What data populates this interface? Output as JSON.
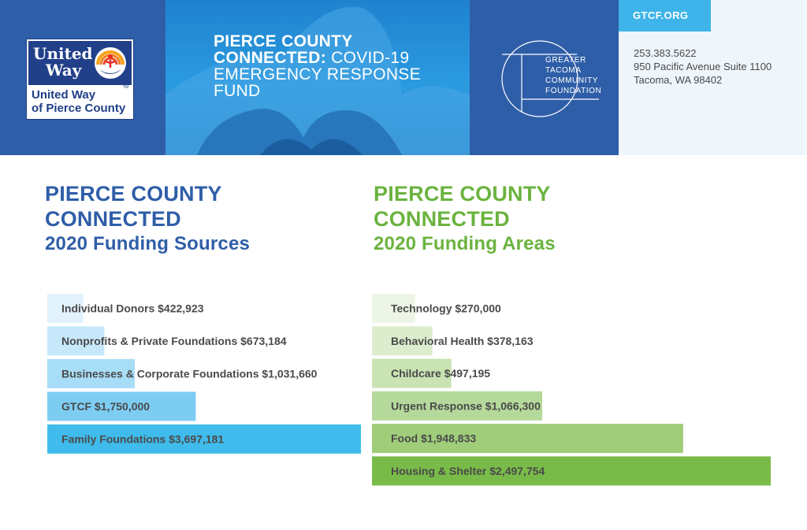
{
  "header": {
    "logo_lines": [
      "United",
      "Way"
    ],
    "logo_subtitle_lines": [
      "United Way",
      "of Pierce County"
    ],
    "logo_tm": "TM",
    "title_bold_1": "PIERCE COUNTY",
    "title_bold_2": "CONNECTED:",
    "title_normal_2": " COVID-19",
    "title_line_3": "EMERGENCY RESPONSE",
    "title_line_4": "FUND",
    "foundation_lines": [
      "GREATER",
      "TACOMA",
      "COMMUNITY",
      "FOUNDATION"
    ],
    "url": "GTCF.ORG",
    "phone": "253.383.5622",
    "address_1": "950 Pacific Avenue Suite 1100",
    "address_2": "Tacoma, WA 98402"
  },
  "colors": {
    "blue_title": "#2f5ea8",
    "green_title": "#6bb33f"
  },
  "chart_data": [
    {
      "type": "bar",
      "orientation": "horizontal",
      "title_lines": [
        "PIERCE COUNTY",
        "CONNECTED"
      ],
      "subtitle": "2020 Funding Sources",
      "categories": [
        "Individual Donors",
        "Nonprofits & Private Foundations",
        "Businesses & Corporate Foundations",
        "GTCF",
        "Family Foundations"
      ],
      "values": [
        422923,
        673184,
        1031660,
        1750000,
        3697181
      ],
      "labels": [
        "Individual Donors $422,923",
        "Nonprofits & Private Foundations $673,184",
        "Businesses & Corporate Foundations $1,031,660",
        "GTCF $1,750,000",
        "Family Foundations $3,697,181"
      ],
      "colors": [
        "#e2f2fc",
        "#c6e8fa",
        "#a8ddf7",
        "#7dcdf3",
        "#3fbcec"
      ],
      "grid": false,
      "legend": "none"
    },
    {
      "type": "bar",
      "orientation": "horizontal",
      "title_lines": [
        "PIERCE COUNTY",
        "CONNECTED"
      ],
      "subtitle": "2020 Funding Areas",
      "categories": [
        "Technology",
        "Behavioral Health",
        "Childcare",
        "Urgent Response",
        "Food",
        "Housing & Shelter"
      ],
      "values": [
        270000,
        378163,
        497195,
        1066300,
        1948833,
        2497754
      ],
      "labels": [
        "Technology $270,000",
        "Behavioral Health $378,163",
        "Childcare $497,195",
        "Urgent Response $1,066,300",
        "Food $1,948,833",
        "Housing & Shelter $2,497,754"
      ],
      "colors": [
        "#edf5e6",
        "#dcedcd",
        "#c9e3b3",
        "#b5d99a",
        "#9fcd79",
        "#79bb48"
      ],
      "grid": false,
      "legend": "none"
    }
  ]
}
